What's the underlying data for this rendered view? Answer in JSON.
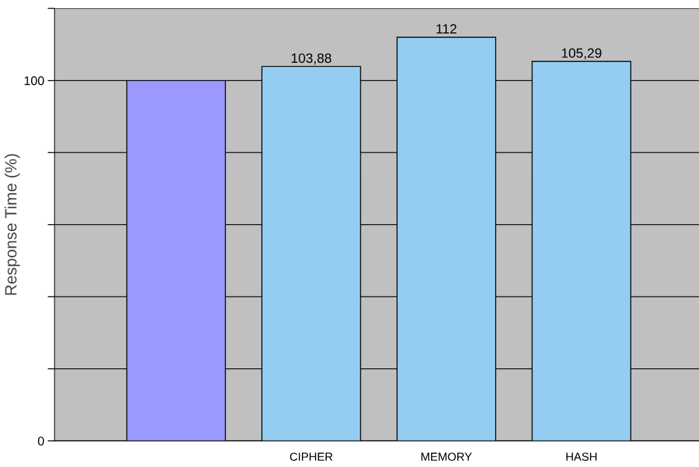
{
  "chart_data": {
    "type": "bar",
    "ylabel": "Response Time (%)",
    "categories": [
      null,
      "CIPHER",
      "MEMORY",
      "HASH"
    ],
    "values": [
      100,
      103.88,
      112,
      105.29
    ],
    "colors": [
      "#9999ff",
      "#93cdf2",
      "#93cdf2",
      "#93cdf2"
    ],
    "value_labels": [
      null,
      "103,88",
      "112",
      "105,29"
    ],
    "ylim": [
      0,
      120
    ],
    "yticks": [
      0,
      {
        "value": 20,
        "label": null
      },
      {
        "value": 40,
        "label": null
      },
      {
        "value": 60,
        "label": null
      },
      {
        "value": 80,
        "label": null
      },
      100,
      {
        "value": 120,
        "label": null
      }
    ],
    "grid": "y",
    "legend": false
  }
}
